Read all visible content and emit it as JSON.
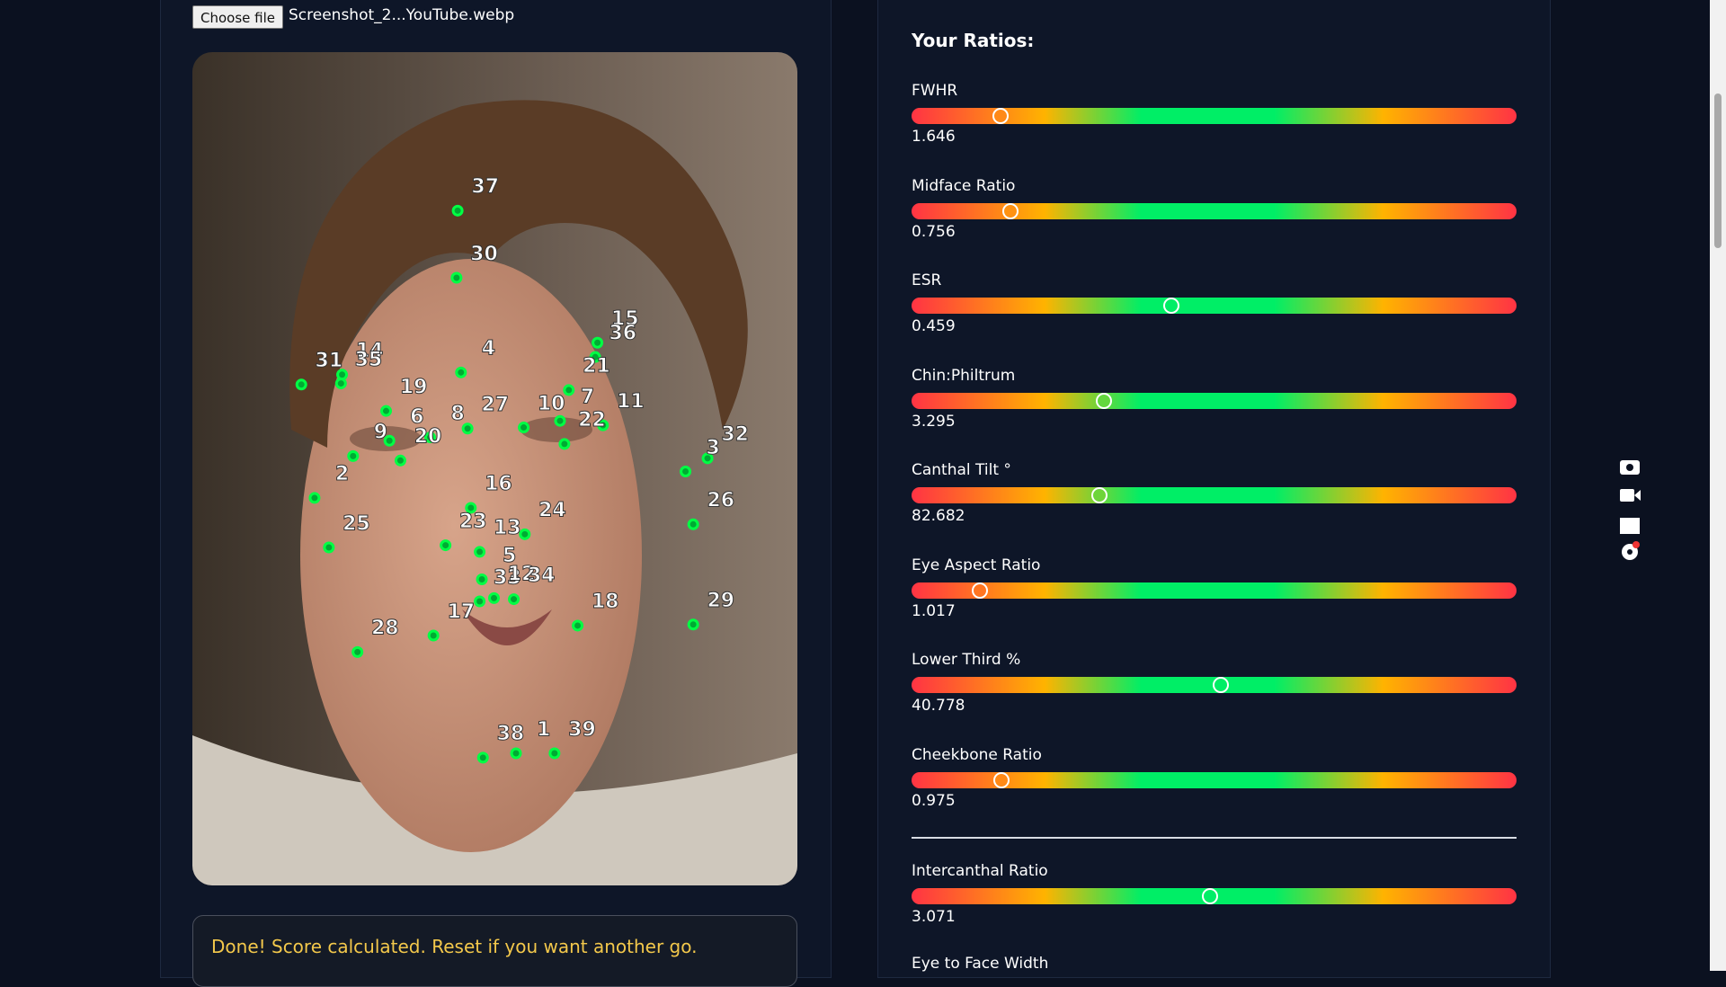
{
  "file_input": {
    "button": "Choose file",
    "filename": "Screenshot_2...YouTube.webp"
  },
  "landmark_labels": [
    "37",
    "30",
    "15",
    "36",
    "4",
    "14",
    "35",
    "31",
    "21",
    "19",
    "7",
    "10",
    "11",
    "22",
    "6",
    "27",
    "8",
    "9",
    "20",
    "32",
    "3",
    "2",
    "16",
    "26",
    "23",
    "13",
    "24",
    "25",
    "5",
    "33",
    "12",
    "34",
    "18",
    "29",
    "17",
    "28",
    "38",
    "1",
    "39"
  ],
  "status": "Done! Score calculated. Reset if you want another go.",
  "ratios": {
    "title": "Your Ratios:",
    "items": [
      {
        "name": "FWHR",
        "value": 1.646
      },
      {
        "name": "Midface Ratio",
        "value": 0.756
      },
      {
        "name": "ESR",
        "value": 0.459
      },
      {
        "name": "Chin:Philtrum",
        "value": 3.295
      },
      {
        "name": "Canthal Tilt °",
        "value": 82.682
      },
      {
        "name": "Eye Aspect Ratio",
        "value": 1.017
      },
      {
        "name": "Lower Third %",
        "value": 40.778
      },
      {
        "name": "Cheekbone Ratio",
        "value": 0.975
      }
    ],
    "separated_items": [
      {
        "name": "Intercanthal Ratio",
        "value": 3.071
      },
      {
        "name": "Eye to Face Width"
      }
    ]
  }
}
